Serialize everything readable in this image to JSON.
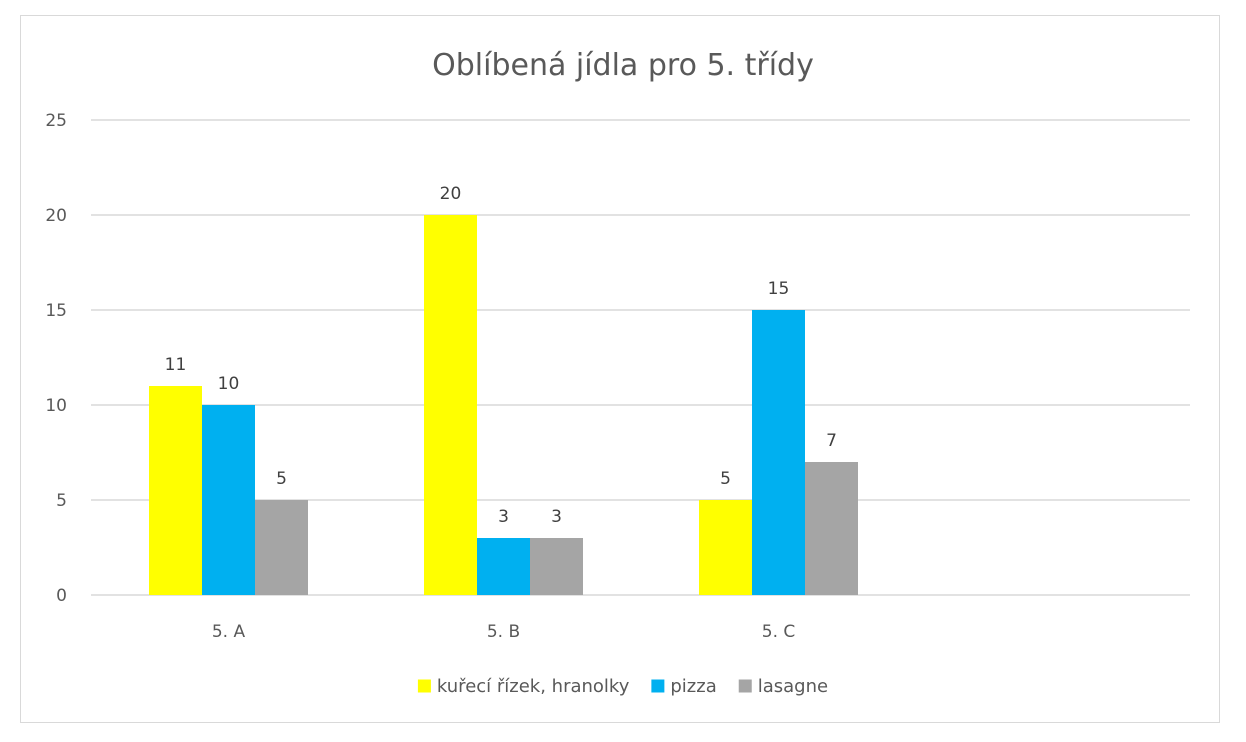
{
  "chart_data": {
    "type": "bar",
    "title": "Oblíbená jídla pro 5. třídy",
    "categories": [
      "5. A",
      "5. B",
      "5. C"
    ],
    "series": [
      {
        "name": "kuřecí řízek, hranolky",
        "color": "#ffff00",
        "values": [
          11,
          20,
          5
        ]
      },
      {
        "name": "pizza",
        "color": "#00b0f0",
        "values": [
          10,
          3,
          15
        ]
      },
      {
        "name": "lasagne",
        "color": "#a5a5a5",
        "values": [
          5,
          3,
          7
        ]
      }
    ],
    "ylim": [
      0,
      25
    ],
    "yticks": [
      "0",
      "5",
      "10",
      "15",
      "20",
      "25"
    ],
    "grid": true,
    "legend": "bottom",
    "data_labels": true
  }
}
